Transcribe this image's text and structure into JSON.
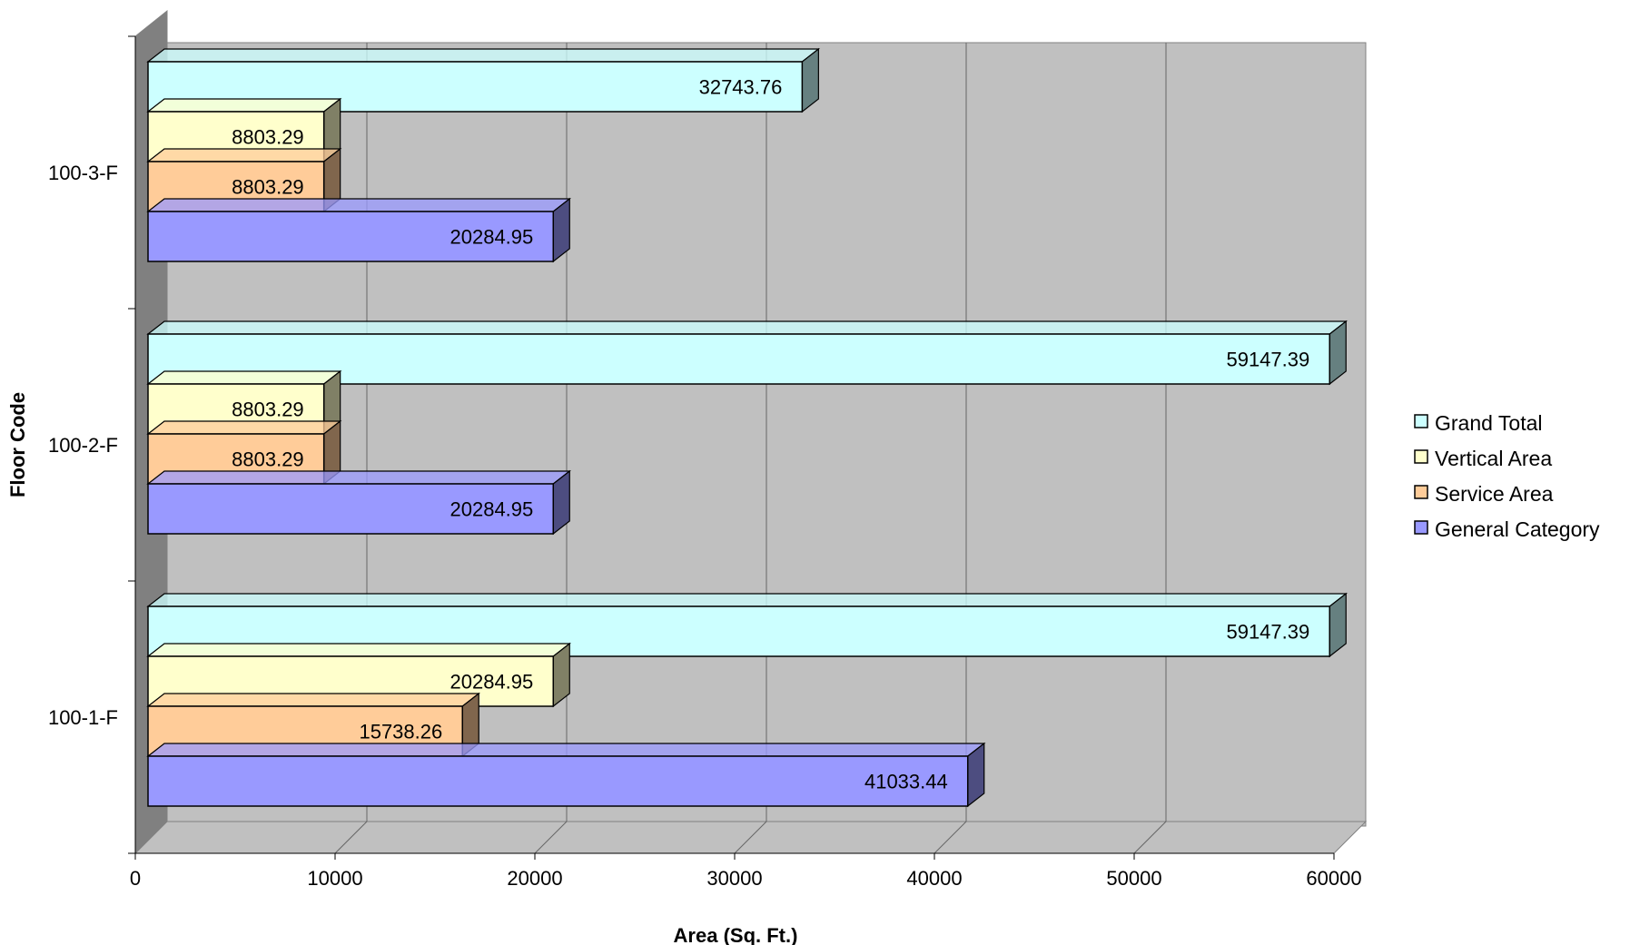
{
  "chart_data": {
    "type": "bar",
    "orientation": "horizontal",
    "style": "3d-clustered",
    "title": "",
    "xlabel": "Area (Sq. Ft.)",
    "ylabel": "Floor Code",
    "xlim": [
      0,
      60000
    ],
    "x_ticks": [
      "0",
      "10000",
      "20000",
      "30000",
      "40000",
      "50000",
      "60000"
    ],
    "categories": [
      "100-1-F",
      "100-2-F",
      "100-3-F"
    ],
    "series": [
      {
        "name": "General Category",
        "color": "#9999ff",
        "side_color": "#4d4d80",
        "values": [
          41033.44,
          20284.95,
          20284.95
        ],
        "labels": [
          "41033.44",
          "20284.95",
          "20284.95"
        ]
      },
      {
        "name": "Service Area",
        "color": "#ffcc99",
        "side_color": "#80664d",
        "values": [
          15738.26,
          8803.29,
          8803.29
        ],
        "labels": [
          "15738.26",
          "8803.29",
          "8803.29"
        ]
      },
      {
        "name": "Vertical Area",
        "color": "#ffffcc",
        "side_color": "#808066",
        "values": [
          20284.95,
          8803.29,
          8803.29
        ],
        "labels": [
          "20284.95",
          "8803.29",
          "8803.29"
        ]
      },
      {
        "name": "Grand Total",
        "color": "#ccffff",
        "side_color": "#668080",
        "values": [
          59147.39,
          59147.39,
          32743.76
        ],
        "labels": [
          "59147.39",
          "59147.39",
          "32743.76"
        ]
      }
    ],
    "legend_order": [
      "Grand Total",
      "Vertical Area",
      "Service Area",
      "General Category"
    ],
    "legend_position": "right",
    "grid": true,
    "wall_color": "#c0c0c0"
  }
}
